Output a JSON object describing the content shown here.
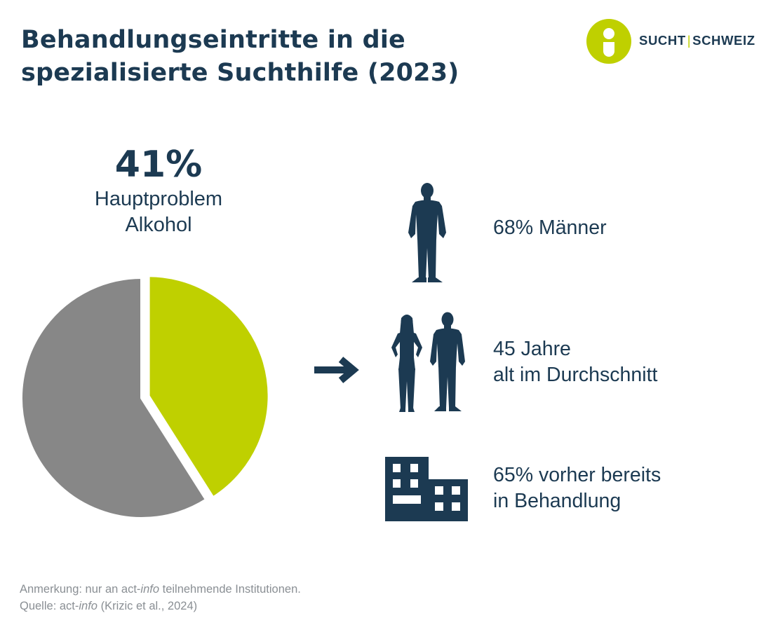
{
  "title_line1": "Behandlungseintritte in die",
  "title_line2": "spezialisierte Suchthilfe (2023)",
  "logo": {
    "left": "SUCHT",
    "sep": "|",
    "right": "SCHWEIZ"
  },
  "pie_highlight": {
    "value_text": "41%",
    "label_line1": "Hauptproblem",
    "label_line2": "Alkohol"
  },
  "chart_data": {
    "type": "pie",
    "slices": [
      {
        "value": 41,
        "color": "#bfd000"
      },
      {
        "value": 59,
        "color": "#878787"
      }
    ]
  },
  "icons": {
    "man": "man-silhouette-icon",
    "couple": "woman-and-man-icon",
    "building": "building-icon",
    "arrow": "arrow-right-icon"
  },
  "stats": {
    "men": "68% Männer",
    "age_line1": "45 Jahre",
    "age_line2": "alt im Durchschnitt",
    "prior_line1": "65% vorher bereits",
    "prior_line2": "in Behandlung"
  },
  "footnote": {
    "line1_prefix": "Anmerkung: nur an act-",
    "line1_italic": "info",
    "line1_suffix": " teilnehmende Institutionen.",
    "line2_prefix": "Quelle: act-",
    "line2_italic": "info",
    "line2_suffix": " (Krizic et al., 2024)"
  },
  "colors": {
    "navy": "#1c3a52",
    "lime": "#bfd000",
    "grey": "#878787",
    "note_grey": "#8a8f94"
  }
}
